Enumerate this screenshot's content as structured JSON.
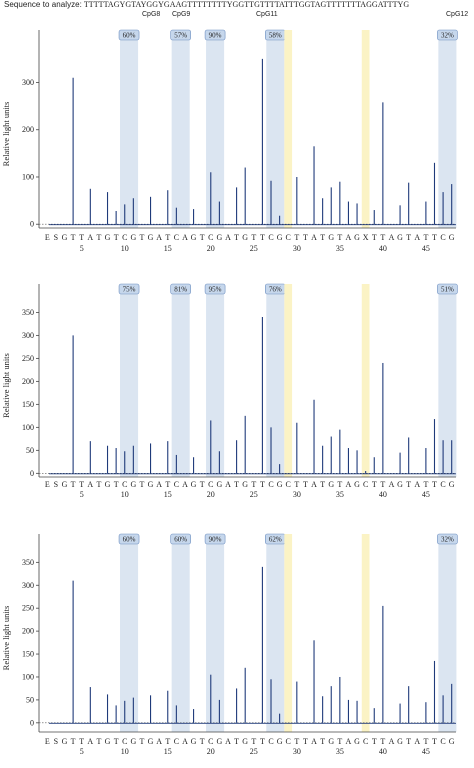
{
  "header": {
    "label": "Sequence to analyze:",
    "sequence": "TTTTTAGYGTAYGGYGAAGTTTTTTTTYGGTTGTTTTATTTGGTAGTTTTTTTAGGATTTYG",
    "cpg_labels": [
      "CpG8",
      "CpG9",
      "CpG11",
      "CpG12"
    ]
  },
  "colors": {
    "trace": "#1f3a7a",
    "cpg_region": "#dbe5f1",
    "control_region": "#fbf3c5",
    "badge_fill": "#c6d7ec",
    "badge_border": "#6e8fc0"
  },
  "chart_data": [
    {
      "type": "bar",
      "ylabel": "Relative light units",
      "ylim": [
        -8,
        390
      ],
      "yticks": [
        0,
        100,
        200,
        300
      ],
      "dispensation": [
        "E",
        "S",
        "G",
        "T",
        "T",
        "A",
        "T",
        "G",
        "T",
        "C",
        "G",
        "T",
        "G",
        "A",
        "T",
        "C",
        "A",
        "G",
        "T",
        "C",
        "G",
        "A",
        "T",
        "G",
        "T",
        "T",
        "C",
        "G",
        "C",
        "T",
        "T",
        "A",
        "T",
        "G",
        "T",
        "A",
        "G",
        "X",
        "T",
        "T",
        "A",
        "G",
        "T",
        "A",
        "T",
        "T",
        "C",
        "G"
      ],
      "xticks": [
        "5",
        "10",
        "15",
        "20",
        "25",
        "30",
        "35",
        "40",
        "45"
      ],
      "cpg_regions": [
        [
          9,
          10
        ],
        [
          15,
          16
        ],
        [
          19,
          20
        ],
        [
          26,
          27
        ],
        [
          46,
          47
        ]
      ],
      "control_regions": [
        28,
        37
      ],
      "percentages": [
        "60%",
        "57%",
        "90%",
        "58%",
        "32%"
      ],
      "values": [
        0,
        0,
        0,
        310,
        0,
        75,
        0,
        68,
        28,
        42,
        55,
        0,
        58,
        0,
        72,
        35,
        0,
        32,
        0,
        110,
        48,
        0,
        78,
        120,
        0,
        350,
        92,
        18,
        0,
        100,
        0,
        165,
        55,
        78,
        90,
        48,
        44,
        0,
        30,
        258,
        0,
        40,
        88,
        0,
        48,
        130,
        68,
        85
      ]
    },
    {
      "type": "bar",
      "ylabel": "Relative light units",
      "ylim": [
        -8,
        390
      ],
      "yticks": [
        0,
        50,
        100,
        150,
        200,
        250,
        300,
        350
      ],
      "dispensation": [
        "E",
        "S",
        "G",
        "T",
        "T",
        "A",
        "T",
        "G",
        "T",
        "C",
        "G",
        "T",
        "G",
        "A",
        "T",
        "C",
        "A",
        "G",
        "T",
        "C",
        "G",
        "A",
        "T",
        "G",
        "T",
        "T",
        "C",
        "G",
        "C",
        "T",
        "T",
        "A",
        "T",
        "G",
        "T",
        "A",
        "G",
        "C",
        "T",
        "T",
        "A",
        "G",
        "T",
        "A",
        "T",
        "T",
        "C",
        "G"
      ],
      "xticks": [
        "5",
        "10",
        "15",
        "20",
        "25",
        "30",
        "35",
        "40",
        "45"
      ],
      "cpg_regions": [
        [
          9,
          10
        ],
        [
          15,
          16
        ],
        [
          19,
          20
        ],
        [
          26,
          27
        ],
        [
          46,
          47
        ]
      ],
      "control_regions": [
        28,
        37
      ],
      "percentages": [
        "75%",
        "81%",
        "95%",
        "76%",
        "51%"
      ],
      "values": [
        0,
        0,
        0,
        300,
        0,
        70,
        0,
        60,
        55,
        48,
        60,
        0,
        65,
        0,
        70,
        40,
        0,
        35,
        0,
        115,
        48,
        0,
        72,
        125,
        0,
        340,
        100,
        20,
        0,
        110,
        0,
        160,
        60,
        80,
        95,
        55,
        50,
        5,
        35,
        240,
        0,
        45,
        78,
        0,
        55,
        118,
        72,
        72
      ]
    },
    {
      "type": "bar",
      "ylabel": "Relative light units",
      "ylim": [
        -20,
        390
      ],
      "yticks": [
        0,
        50,
        100,
        150,
        200,
        250,
        300,
        350
      ],
      "dispensation": [
        "E",
        "S",
        "G",
        "T",
        "T",
        "A",
        "T",
        "G",
        "T",
        "C",
        "G",
        "T",
        "G",
        "A",
        "T",
        "C",
        "A",
        "G",
        "T",
        "C",
        "G",
        "A",
        "T",
        "G",
        "T",
        "T",
        "C",
        "G",
        "C",
        "T",
        "T",
        "A",
        "T",
        "G",
        "T",
        "A",
        "G",
        "C",
        "T",
        "T",
        "A",
        "G",
        "T",
        "A",
        "T",
        "T",
        "C",
        "G"
      ],
      "xticks": [
        "5",
        "10",
        "15",
        "20",
        "25",
        "30",
        "35",
        "40",
        "45"
      ],
      "cpg_regions": [
        [
          9,
          10
        ],
        [
          15,
          16
        ],
        [
          19,
          20
        ],
        [
          26,
          27
        ],
        [
          46,
          47
        ]
      ],
      "control_regions": [
        28,
        37
      ],
      "percentages": [
        "60%",
        "60%",
        "90%",
        "62%",
        "32%"
      ],
      "values": [
        0,
        0,
        0,
        310,
        0,
        78,
        0,
        62,
        38,
        48,
        55,
        0,
        60,
        0,
        70,
        38,
        0,
        30,
        0,
        105,
        50,
        0,
        75,
        120,
        0,
        340,
        95,
        20,
        0,
        90,
        0,
        180,
        58,
        80,
        100,
        50,
        48,
        0,
        32,
        255,
        0,
        42,
        80,
        0,
        45,
        135,
        60,
        85
      ]
    }
  ]
}
